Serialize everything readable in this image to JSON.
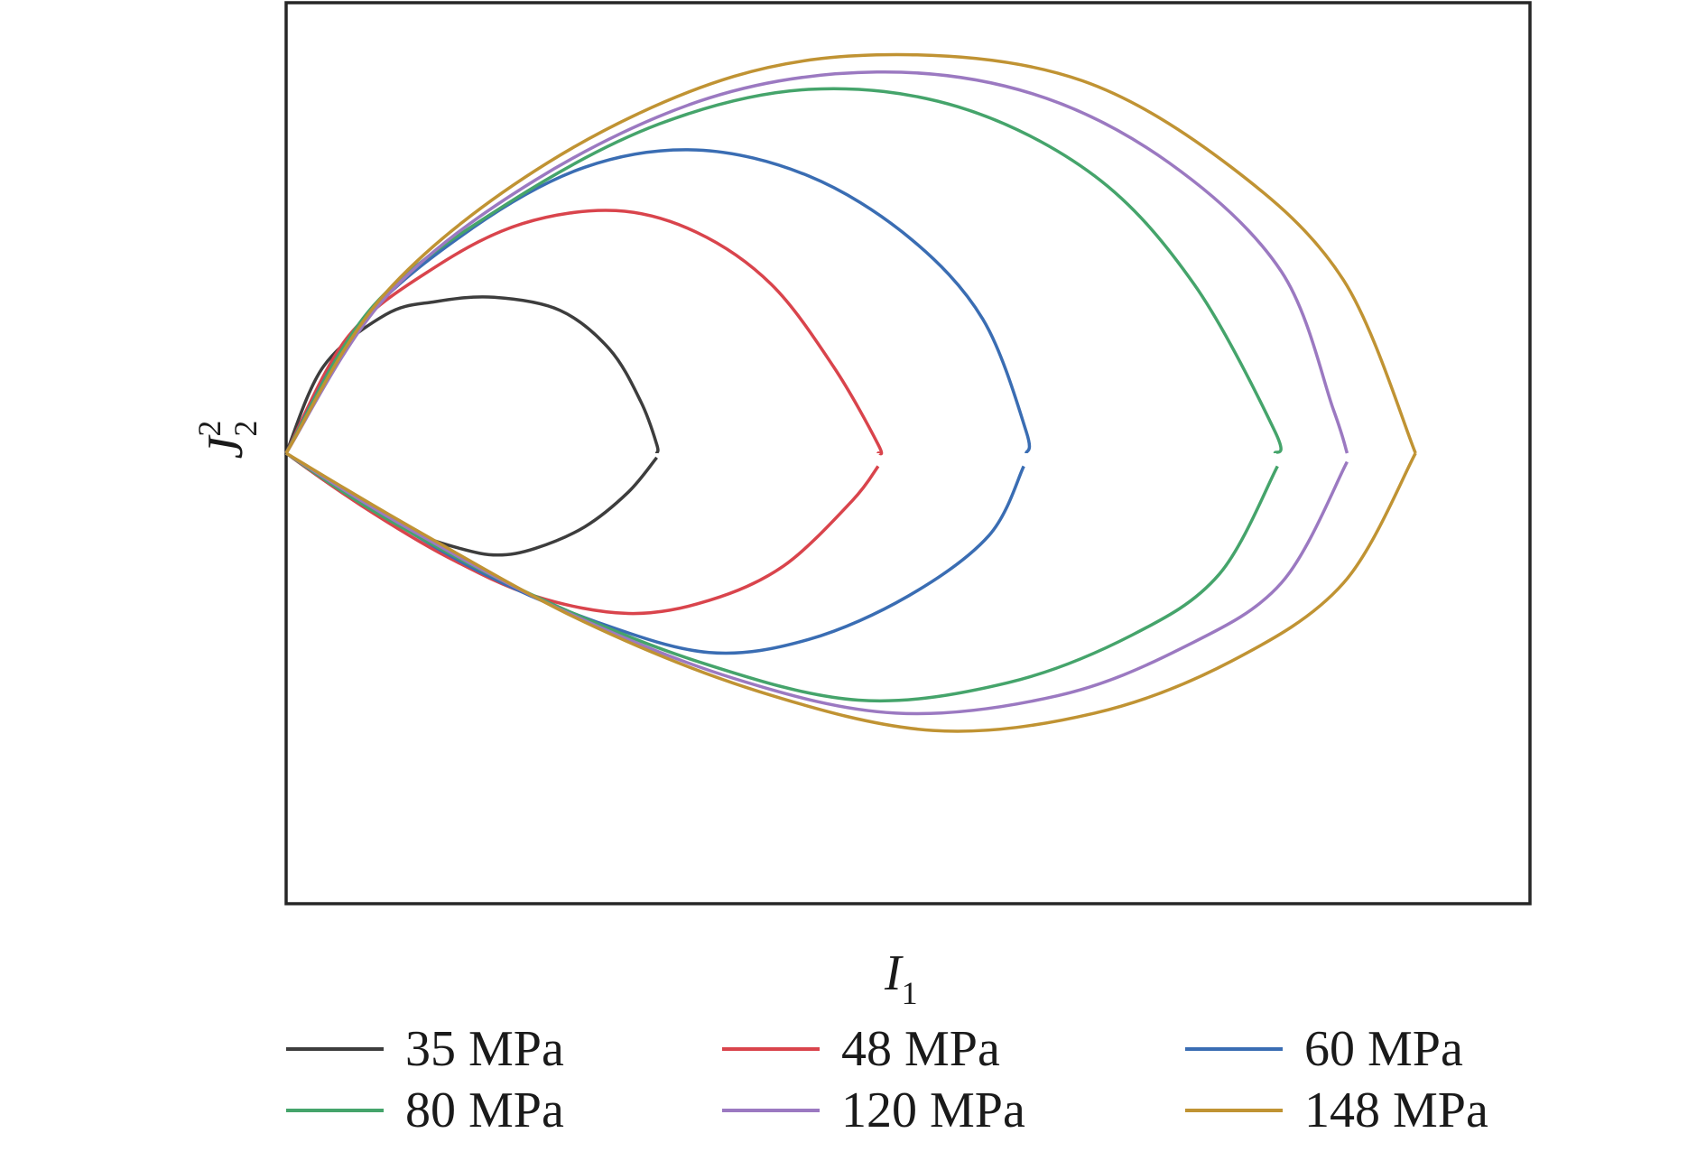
{
  "chart_data": {
    "type": "line",
    "title": "",
    "xlabel": {
      "base": "I",
      "sub": "1"
    },
    "ylabel": {
      "base": "J",
      "sub": "2",
      "sup": "2"
    },
    "xlim": [
      0,
      1
    ],
    "ylim": [
      -1.04,
      1.04
    ],
    "grid": false,
    "legend": {
      "placement": "bottom",
      "columns": 3
    },
    "series": [
      {
        "name": "35 MPa",
        "color": "#3d3d3d",
        "upper": [
          [
            0,
            0
          ],
          [
            0.03,
            0.2
          ],
          [
            0.08,
            0.32
          ],
          [
            0.12,
            0.35
          ],
          [
            0.167,
            0.36
          ],
          [
            0.22,
            0.33
          ],
          [
            0.26,
            0.24
          ],
          [
            0.285,
            0.12
          ],
          [
            0.298,
            0.02
          ],
          [
            0.298,
            0
          ]
        ],
        "lower": [
          [
            0,
            0
          ],
          [
            0.05,
            -0.1
          ],
          [
            0.1,
            -0.18
          ],
          [
            0.14,
            -0.22
          ],
          [
            0.17,
            -0.235
          ],
          [
            0.2,
            -0.22
          ],
          [
            0.24,
            -0.17
          ],
          [
            0.275,
            -0.09
          ],
          [
            0.298,
            -0.01
          ]
        ]
      },
      {
        "name": "48 MPa",
        "color": "#d9444c",
        "upper": [
          [
            0,
            0
          ],
          [
            0.05,
            0.27
          ],
          [
            0.12,
            0.43
          ],
          [
            0.19,
            0.53
          ],
          [
            0.265,
            0.56
          ],
          [
            0.33,
            0.51
          ],
          [
            0.39,
            0.39
          ],
          [
            0.44,
            0.2
          ],
          [
            0.476,
            0.02
          ],
          [
            0.476,
            0
          ]
        ],
        "lower": [
          [
            0,
            0
          ],
          [
            0.06,
            -0.12
          ],
          [
            0.13,
            -0.24
          ],
          [
            0.2,
            -0.33
          ],
          [
            0.275,
            -0.37
          ],
          [
            0.34,
            -0.34
          ],
          [
            0.4,
            -0.26
          ],
          [
            0.455,
            -0.11
          ],
          [
            0.476,
            -0.03
          ]
        ]
      },
      {
        "name": "60 MPa",
        "color": "#3a6db3",
        "upper": [
          [
            0,
            0
          ],
          [
            0.06,
            0.3
          ],
          [
            0.15,
            0.52
          ],
          [
            0.24,
            0.66
          ],
          [
            0.33,
            0.7
          ],
          [
            0.42,
            0.64
          ],
          [
            0.5,
            0.5
          ],
          [
            0.56,
            0.31
          ],
          [
            0.595,
            0.05
          ],
          [
            0.595,
            0
          ]
        ],
        "lower": [
          [
            0,
            0
          ],
          [
            0.07,
            -0.13
          ],
          [
            0.16,
            -0.28
          ],
          [
            0.25,
            -0.39
          ],
          [
            0.34,
            -0.46
          ],
          [
            0.42,
            -0.43
          ],
          [
            0.5,
            -0.33
          ],
          [
            0.565,
            -0.19
          ],
          [
            0.593,
            -0.03
          ]
        ]
      },
      {
        "name": "80 MPa",
        "color": "#45a46b",
        "upper": [
          [
            0,
            0
          ],
          [
            0.07,
            0.34
          ],
          [
            0.18,
            0.58
          ],
          [
            0.3,
            0.76
          ],
          [
            0.42,
            0.84
          ],
          [
            0.54,
            0.8
          ],
          [
            0.65,
            0.64
          ],
          [
            0.73,
            0.39
          ],
          [
            0.795,
            0.05
          ],
          [
            0.795,
            0
          ]
        ],
        "lower": [
          [
            0,
            0
          ],
          [
            0.08,
            -0.15
          ],
          [
            0.2,
            -0.33
          ],
          [
            0.33,
            -0.48
          ],
          [
            0.46,
            -0.57
          ],
          [
            0.58,
            -0.53
          ],
          [
            0.68,
            -0.42
          ],
          [
            0.75,
            -0.28
          ],
          [
            0.797,
            -0.03
          ]
        ]
      },
      {
        "name": "120 MPa",
        "color": "#9b79c1",
        "upper": [
          [
            0,
            0
          ],
          [
            0.08,
            0.36
          ],
          [
            0.2,
            0.63
          ],
          [
            0.34,
            0.82
          ],
          [
            0.475,
            0.88
          ],
          [
            0.6,
            0.83
          ],
          [
            0.71,
            0.67
          ],
          [
            0.8,
            0.42
          ],
          [
            0.842,
            0.1
          ],
          [
            0.853,
            0
          ]
        ],
        "lower": [
          [
            0,
            0
          ],
          [
            0.09,
            -0.16
          ],
          [
            0.22,
            -0.36
          ],
          [
            0.36,
            -0.52
          ],
          [
            0.49,
            -0.6
          ],
          [
            0.62,
            -0.56
          ],
          [
            0.72,
            -0.45
          ],
          [
            0.8,
            -0.3
          ],
          [
            0.853,
            -0.02
          ]
        ]
      },
      {
        "name": "148 MPa",
        "color": "#c09333",
        "upper": [
          [
            0,
            0
          ],
          [
            0.08,
            0.37
          ],
          [
            0.21,
            0.67
          ],
          [
            0.36,
            0.87
          ],
          [
            0.5,
            0.92
          ],
          [
            0.64,
            0.86
          ],
          [
            0.76,
            0.66
          ],
          [
            0.85,
            0.4
          ],
          [
            0.908,
            0
          ]
        ],
        "lower": [
          [
            0,
            0
          ],
          [
            0.1,
            -0.17
          ],
          [
            0.24,
            -0.39
          ],
          [
            0.38,
            -0.55
          ],
          [
            0.52,
            -0.64
          ],
          [
            0.65,
            -0.6
          ],
          [
            0.76,
            -0.48
          ],
          [
            0.85,
            -0.3
          ],
          [
            0.908,
            0
          ]
        ]
      }
    ]
  }
}
